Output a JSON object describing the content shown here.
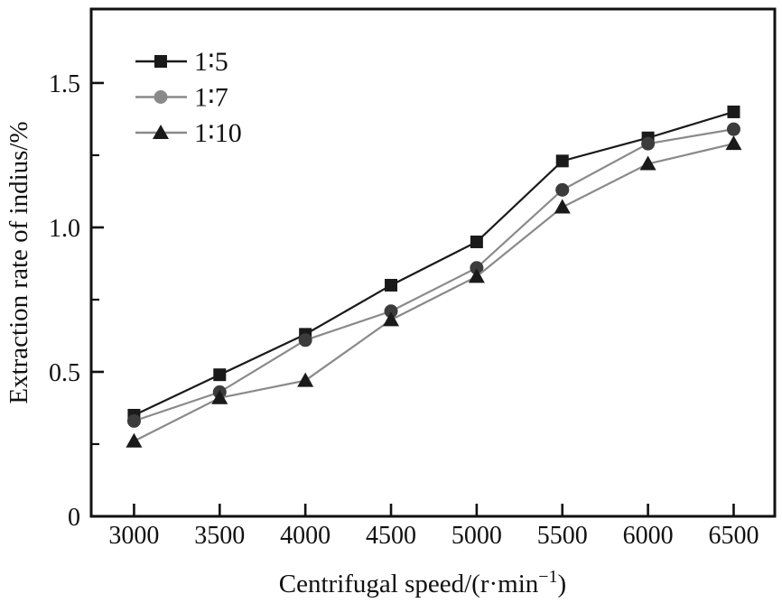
{
  "figure": {
    "background": "#ffffff",
    "axis_color": "#111111"
  },
  "chart_data": {
    "type": "line",
    "title": "",
    "xlabel": "Centrifugal speed/(r·min⁻¹)",
    "xlabel_parts": {
      "main": "Centrifugal speed/(r·min",
      "sup": "−1",
      "close": ")"
    },
    "ylabel": "Extraction rate of indius/%",
    "x": [
      3000,
      3500,
      4000,
      4500,
      5000,
      5500,
      6000,
      6500
    ],
    "x_tick_labels": [
      "3000",
      "3500",
      "4000",
      "4500",
      "5000",
      "5500",
      "6000",
      "6500"
    ],
    "y_ticks": [
      0,
      0.5,
      1.0,
      1.5
    ],
    "y_tick_labels": [
      "0",
      "0.5",
      "1.0",
      "1.5"
    ],
    "y_minor_ticks": [
      0.25,
      0.75,
      1.25
    ],
    "xlim": [
      2750,
      6740
    ],
    "ylim": [
      0,
      1.756
    ],
    "grid": false,
    "legend_position": "top-left-inside",
    "series": [
      {
        "name": "1∶5",
        "marker": "square",
        "line_color": "#1a1a1a",
        "marker_color": "#1a1a1a",
        "values": [
          0.35,
          0.49,
          0.63,
          0.8,
          0.95,
          1.23,
          1.31,
          1.4
        ]
      },
      {
        "name": "1∶7",
        "marker": "circle",
        "line_color": "#8a8a8a",
        "marker_color": "#3c3c3c",
        "legend_marker_color": "#8a8a8a",
        "values": [
          0.33,
          0.43,
          0.61,
          0.71,
          0.86,
          1.13,
          1.29,
          1.34
        ]
      },
      {
        "name": "1∶10",
        "marker": "triangle",
        "line_color": "#8a8a8a",
        "marker_color": "#1a1a1a",
        "values": [
          0.26,
          0.41,
          0.47,
          0.68,
          0.83,
          1.07,
          1.22,
          1.29
        ]
      }
    ]
  }
}
